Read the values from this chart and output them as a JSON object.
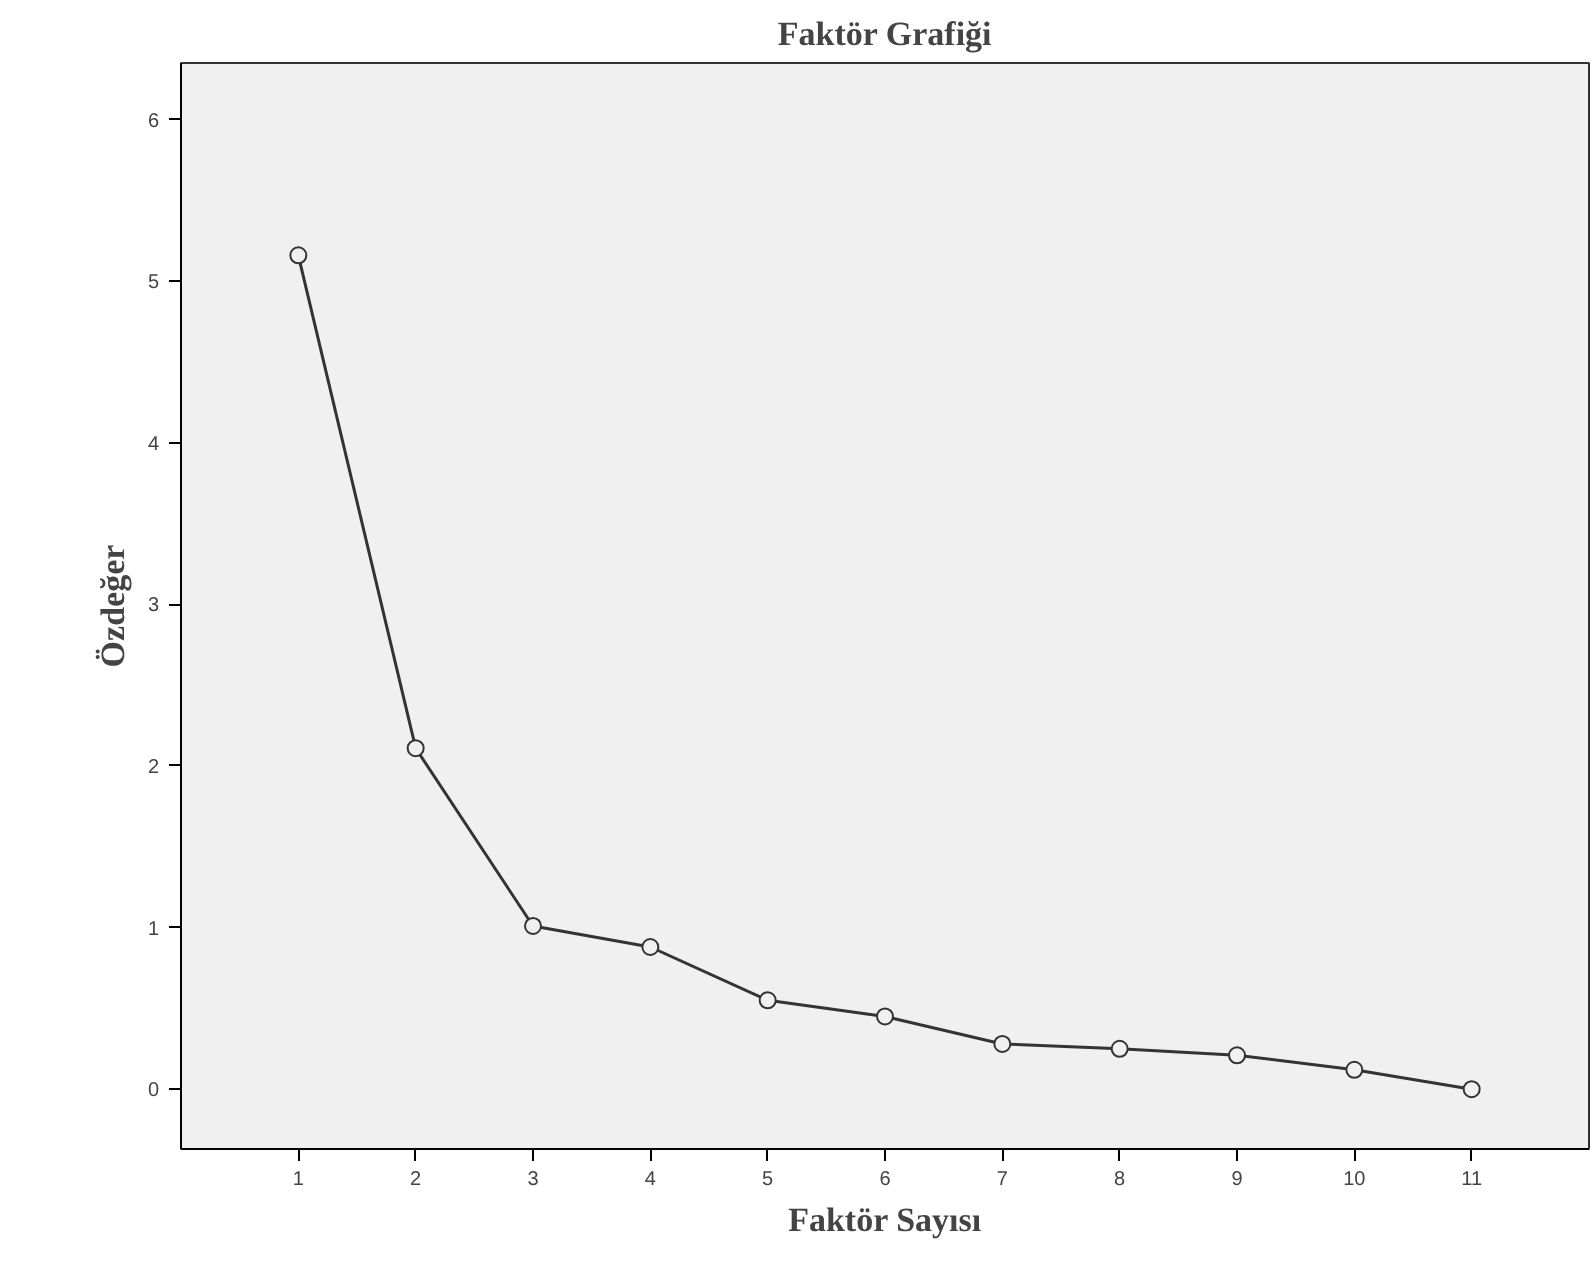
{
  "chart_data": {
    "type": "line",
    "title": "Faktör Grafiği",
    "xlabel": "Faktör Sayısı",
    "ylabel": "Özdeğer",
    "x": [
      1,
      2,
      3,
      4,
      5,
      6,
      7,
      8,
      9,
      10,
      11
    ],
    "series": [
      {
        "color": "#333333",
        "values": [
          5.16,
          2.11,
          1.01,
          0.88,
          0.55,
          0.45,
          0.28,
          0.25,
          0.21,
          0.12,
          0.0
        ]
      }
    ],
    "xlim": [
      0,
      12
    ],
    "ylim": [
      -0.37,
      6.35
    ],
    "xticks": [
      1,
      2,
      3,
      4,
      5,
      6,
      7,
      8,
      9,
      10,
      11
    ],
    "yticks": [
      0,
      1,
      2,
      3,
      4,
      5,
      6
    ],
    "grid": false,
    "marker": "circle",
    "line_style": "solid"
  }
}
